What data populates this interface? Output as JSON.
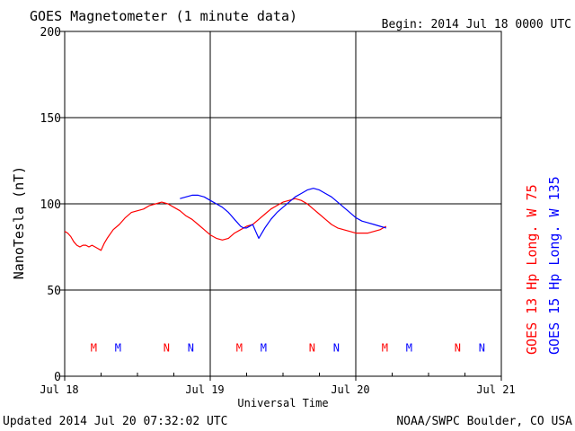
{
  "chart_data": {
    "type": "line",
    "title": "GOES Magnetometer (1 minute data)",
    "begin_label": "Begin:  2014 Jul 18 0000 UTC",
    "ylabel": "NanoTesla (nT)",
    "xlabel": "Universal Time",
    "ylim": [
      0,
      200
    ],
    "xlim_hours": [
      0,
      72
    ],
    "y_ticks": [
      "0",
      "50",
      "100",
      "150",
      "200"
    ],
    "y_tick_values": [
      0,
      50,
      100,
      150,
      200
    ],
    "x_ticks": [
      "Jul 18",
      "Jul 19",
      "Jul 20",
      "Jul 21"
    ],
    "x_tick_hours": [
      0,
      24,
      48,
      72
    ],
    "footer_left": "Updated 2014 Jul 20 07:32:02 UTC",
    "footer_right": "NOAA/SWPC Boulder, CO USA",
    "colors": {
      "goes13": "#ff0000",
      "goes15": "#0000ff",
      "axes": "#000000"
    },
    "series": [
      {
        "name": "GOES 13 Hp  Long. W 75",
        "color": "#ff0000",
        "x": [
          0,
          0.5,
          1,
          1.5,
          2,
          2.5,
          3,
          3.5,
          4,
          4.5,
          5,
          5.5,
          6,
          6.5,
          7,
          8,
          9,
          10,
          11,
          12,
          13,
          14,
          15,
          16,
          17,
          18,
          19,
          20,
          21,
          22,
          23,
          24,
          25,
          26,
          27,
          28,
          29,
          30,
          31,
          32,
          33,
          34,
          35,
          36,
          37,
          38,
          39,
          40,
          41,
          42,
          43,
          44,
          45,
          46,
          47,
          48,
          49,
          50,
          51,
          52,
          52.5,
          53
        ],
        "y": [
          84,
          83,
          81,
          78,
          76,
          75,
          76,
          76,
          75,
          76,
          75,
          74,
          73,
          77,
          80,
          85,
          88,
          92,
          95,
          96,
          97,
          99,
          100,
          101,
          100,
          98,
          96,
          93,
          91,
          88,
          85,
          82,
          80,
          79,
          80,
          83,
          85,
          87,
          88,
          91,
          94,
          97,
          99,
          101,
          102,
          103,
          102,
          100,
          97,
          94,
          91,
          88,
          86,
          85,
          84,
          83,
          83,
          83,
          84,
          85,
          86,
          87
        ]
      },
      {
        "name": "GOES 15 Hp  Long. W 135",
        "color": "#0000ff",
        "x": [
          19,
          20,
          21,
          22,
          23,
          24,
          25,
          26,
          27,
          28,
          29,
          29.5,
          30,
          30.5,
          31,
          31.5,
          32,
          33,
          34,
          35,
          36,
          37,
          38,
          39,
          40,
          41,
          42,
          43,
          44,
          45,
          46,
          47,
          48,
          49,
          50,
          51,
          52,
          53
        ],
        "y": [
          103,
          104,
          105,
          105,
          104,
          102,
          100,
          98,
          95,
          91,
          87,
          86,
          86,
          87,
          88,
          84,
          80,
          86,
          91,
          95,
          98,
          101,
          104,
          106,
          108,
          109,
          108,
          106,
          104,
          101,
          98,
          95,
          92,
          90,
          89,
          88,
          87,
          86
        ]
      }
    ],
    "markers": [
      {
        "label": "M",
        "color": "#ff0000",
        "x_hours": 4.8
      },
      {
        "label": "M",
        "color": "#0000ff",
        "x_hours": 8.8
      },
      {
        "label": "N",
        "color": "#ff0000",
        "x_hours": 16.8
      },
      {
        "label": "N",
        "color": "#0000ff",
        "x_hours": 20.8
      },
      {
        "label": "M",
        "color": "#ff0000",
        "x_hours": 28.8
      },
      {
        "label": "M",
        "color": "#0000ff",
        "x_hours": 32.8
      },
      {
        "label": "N",
        "color": "#ff0000",
        "x_hours": 40.8
      },
      {
        "label": "N",
        "color": "#0000ff",
        "x_hours": 44.8
      },
      {
        "label": "M",
        "color": "#ff0000",
        "x_hours": 52.8
      },
      {
        "label": "M",
        "color": "#0000ff",
        "x_hours": 56.8
      },
      {
        "label": "N",
        "color": "#ff0000",
        "x_hours": 64.8
      },
      {
        "label": "N",
        "color": "#0000ff",
        "x_hours": 68.8
      }
    ],
    "marker_y_value": 17
  }
}
